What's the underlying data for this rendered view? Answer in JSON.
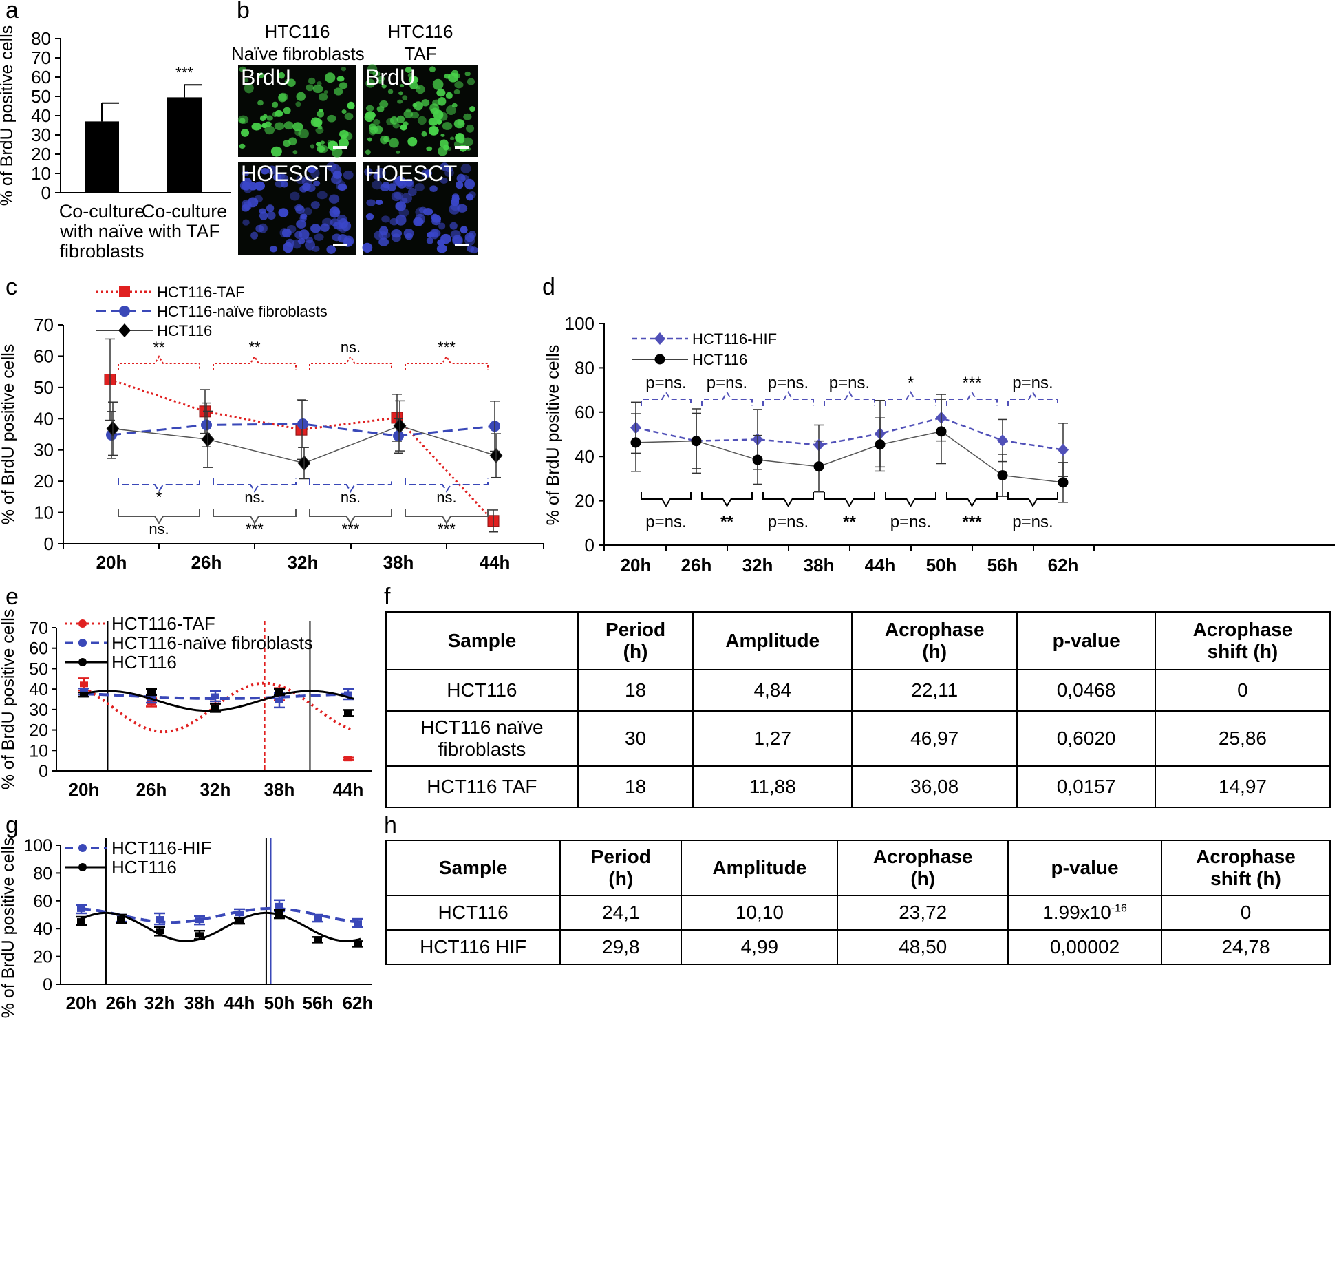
{
  "panels": {
    "a": "a",
    "b": "b",
    "c": "c",
    "d": "d",
    "e": "e",
    "f": "f",
    "g": "g",
    "h": "h"
  },
  "colors": {
    "red": "#e02020",
    "blue": "#3a48b8",
    "purple": "#5050b8",
    "black": "#000000",
    "green": "#48d24a",
    "nuclei": "#3a46c8"
  },
  "micro": {
    "col1_title_1": "HTC116",
    "col1_title_2": "Naïve fibroblasts",
    "col2_title_1": "HTC116",
    "col2_title_2": "TAF",
    "brdu": "BrdU",
    "hoesct": "HOESCT"
  },
  "chart_data": [
    {
      "id": "a",
      "type": "bar",
      "ylabel": "% of BrdU positive cells",
      "ylim": [
        0,
        80
      ],
      "yticks": [
        "0",
        "10",
        "20",
        "30",
        "40",
        "50",
        "60",
        "70",
        "80"
      ],
      "categories": [
        [
          "Co-culture",
          "with naïve",
          "fibroblasts"
        ],
        [
          "Co-culture",
          "with TAF"
        ]
      ],
      "values": [
        37,
        49.5
      ],
      "errors": [
        9.5,
        6.5
      ],
      "annotations": [
        "",
        "***"
      ],
      "colors": [
        "#000000",
        "#000000"
      ]
    },
    {
      "id": "c",
      "type": "line",
      "ylabel": "% of BrdU positive cells",
      "ylim": [
        0,
        70
      ],
      "yticks": [
        "0",
        "10",
        "20",
        "30",
        "40",
        "50",
        "60",
        "70"
      ],
      "x": [
        "20h",
        "26h",
        "32h",
        "38h",
        "44h"
      ],
      "series": [
        {
          "name": "HCT116-TAF",
          "values": [
            52.5,
            42.3,
            36.5,
            40.3,
            7.3
          ],
          "errors": [
            13,
            7,
            9.5,
            7.5,
            3.5
          ],
          "color": "#e02020",
          "marker": "square",
          "dash": "dot"
        },
        {
          "name": "HCT116-naïve fibroblasts",
          "values": [
            34.8,
            38,
            38.3,
            34.5,
            37.6
          ],
          "errors": [
            7.5,
            7,
            7.5,
            5.5,
            8
          ],
          "color": "#3a48b8",
          "marker": "circle",
          "dash": "dash"
        },
        {
          "name": "HCT116",
          "values": [
            36.8,
            33.4,
            25.8,
            37.7,
            28.2
          ],
          "errors": [
            8.5,
            9,
            5,
            8,
            7
          ],
          "color": "#000000",
          "marker": "diamond",
          "dash": "solid"
        }
      ],
      "sig_top": [
        "**",
        "**",
        "ns.",
        "***"
      ],
      "sig_mid": [
        "*",
        "ns.",
        "ns.",
        "ns."
      ],
      "sig_bottom": [
        "ns.",
        "***",
        "***",
        "***"
      ]
    },
    {
      "id": "d",
      "type": "line",
      "ylabel": "% of BrdU positive cells",
      "ylim": [
        0,
        100
      ],
      "yticks": [
        "0",
        "20",
        "40",
        "60",
        "80",
        "100"
      ],
      "x": [
        "20h",
        "26h",
        "32h",
        "38h",
        "44h",
        "50h",
        "56h",
        "62h"
      ],
      "series": [
        {
          "name": "HCT116-HIF",
          "values": [
            53,
            47,
            47.7,
            45.2,
            50.3,
            57.5,
            47.2,
            43
          ],
          "errors": [
            11.5,
            12.5,
            13.5,
            9,
            15,
            10.5,
            9.5,
            12
          ],
          "color": "#5050b8",
          "marker": "diamond",
          "dash": "dash"
        },
        {
          "name": "HCT116",
          "values": [
            46.3,
            47,
            38.5,
            35.5,
            45.4,
            51.3,
            31.5,
            28.3
          ],
          "errors": [
            13,
            14.5,
            11,
            11.5,
            12,
            14.5,
            9.5,
            9
          ],
          "color": "#000000",
          "marker": "circle",
          "dash": "solid"
        }
      ],
      "sig_top": [
        "p=ns.",
        "p=ns.",
        "p=ns.",
        "p=ns.",
        "*",
        "***",
        "p=ns."
      ],
      "sig_bottom": [
        "p=ns.",
        "**",
        "p=ns.",
        "**",
        "p=ns.",
        "***",
        "p=ns."
      ]
    },
    {
      "id": "e",
      "type": "line",
      "ylabel": "% of BrdU positive cells",
      "ylim": [
        0,
        70
      ],
      "yticks": [
        "0",
        "10",
        "20",
        "30",
        "40",
        "50",
        "60",
        "70"
      ],
      "x": [
        "20h",
        "26h",
        "32h",
        "38h",
        "44h"
      ],
      "series": [
        {
          "name": "HCT116-TAF",
          "values": [
            42.3,
            33.5,
            31.5,
            37.5,
            6
          ],
          "errors": [
            3,
            2,
            2.5,
            3,
            0.5
          ],
          "color": "#e02020",
          "fit": {
            "mesor": 31,
            "amplitude": 11.88,
            "period": 18,
            "acrophase": 36.08
          }
        },
        {
          "name": "HCT116-naïve fibroblasts",
          "values": [
            38.8,
            35.3,
            36.5,
            34.5,
            37.5
          ],
          "errors": [
            1.5,
            2,
            2.5,
            3.5,
            2.5
          ],
          "color": "#3a48b8",
          "fit": {
            "mesor": 36.6,
            "amplitude": 1.27,
            "period": 30,
            "acrophase": 46.97
          }
        },
        {
          "name": "HCT116",
          "values": [
            37.3,
            38.5,
            30.8,
            38.5,
            28.3
          ],
          "errors": [
            1,
            1.5,
            2,
            1.5,
            1.5
          ],
          "color": "#000000",
          "fit": {
            "mesor": 34.2,
            "amplitude": 4.84,
            "period": 18,
            "acrophase": 22.11
          }
        }
      ],
      "vlines": [
        {
          "x": 22.11,
          "color": "#000000"
        },
        {
          "x": 36.08,
          "color": "#e02020"
        },
        {
          "x": 40.11,
          "color": "#000000"
        }
      ]
    },
    {
      "id": "g",
      "type": "line",
      "ylabel": "% of BrdU positive cells",
      "ylim": [
        0,
        100
      ],
      "yticks": [
        "0",
        "20",
        "40",
        "60",
        "80",
        "100"
      ],
      "x": [
        "20h",
        "26h",
        "32h",
        "38h",
        "44h",
        "50h",
        "56h",
        "62h"
      ],
      "series": [
        {
          "name": "HCT116-HIF",
          "values": [
            54,
            47.5,
            47,
            46,
            51,
            56.5,
            47.5,
            44
          ],
          "errors": [
            3,
            2.5,
            4,
            3,
            3,
            4,
            2.5,
            3
          ],
          "color": "#3a48b8",
          "fit": {
            "mesor": 49.5,
            "amplitude": 4.99,
            "period": 29.8,
            "acrophase": 48.5
          }
        },
        {
          "name": "HCT116",
          "values": [
            45.5,
            47,
            38,
            35.5,
            45.5,
            50.5,
            32,
            29
          ],
          "errors": [
            3,
            3,
            3,
            3,
            2,
            3,
            2,
            2
          ],
          "color": "#000000",
          "fit": {
            "mesor": 41.2,
            "amplitude": 10.1,
            "period": 24.1,
            "acrophase": 23.72
          }
        }
      ],
      "vlines": [
        {
          "x": 23.72,
          "color": "#000000"
        },
        {
          "x": 47.82,
          "color": "#000000"
        },
        {
          "x": 48.5,
          "color": "#3a48b8"
        }
      ]
    }
  ],
  "tables": {
    "f": {
      "headers": [
        "Sample",
        "Period\n(h)",
        "Amplitude",
        "Acrophase\n(h)",
        "p-value",
        "Acrophase\nshift (h)"
      ],
      "rows": [
        [
          "HCT116",
          "18",
          "4,84",
          "22,11",
          "0,0468",
          "0"
        ],
        [
          "HCT116 naïve\nfibroblasts",
          "30",
          "1,27",
          "46,97",
          "0,6020",
          "25,86"
        ],
        [
          "HCT116 TAF",
          "18",
          "11,88",
          "36,08",
          "0,0157",
          "14,97"
        ]
      ]
    },
    "h": {
      "headers": [
        "Sample",
        "Period\n(h)",
        "Amplitude",
        "Acrophase\n(h)",
        "p-value",
        "Acrophase\nshift (h)"
      ],
      "rows": [
        [
          "HCT116",
          "24,1",
          "10,10",
          "23,72",
          "1.99x10",
          "0"
        ],
        [
          "HCT116 HIF",
          "29,8",
          "4,99",
          "48,50",
          "0,00002",
          "24,78"
        ]
      ],
      "pvalue_exponent": "-16"
    }
  }
}
